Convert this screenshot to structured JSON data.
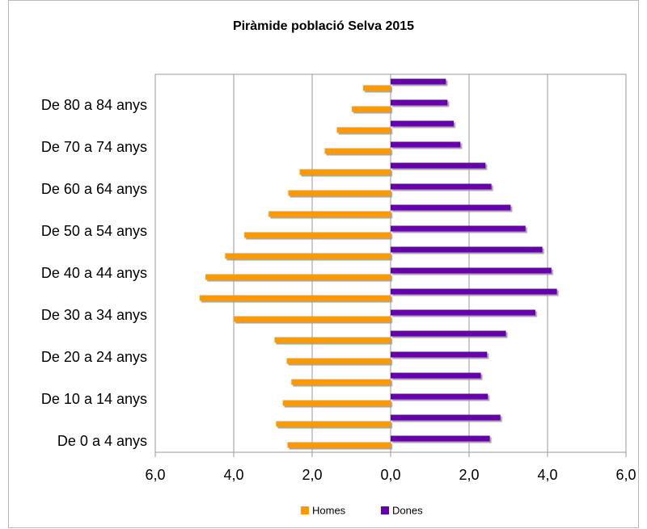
{
  "chart_data": {
    "type": "pyramid",
    "title": "Piràmide població Selva 2015",
    "categories": [
      "De 0 a 4 anys",
      null,
      "De 10 a 14 anys",
      null,
      "De 20 a 24 anys",
      null,
      "De 30 a 34 anys",
      null,
      "De 40 a 44 anys",
      null,
      "De 50 a 54 anys",
      null,
      "De 60 a 64 anys",
      null,
      "De 70 a 74 anys",
      null,
      "De 80 a 84 anys",
      null
    ],
    "series": [
      {
        "name": "Homes",
        "color": "#ff9900",
        "values": [
          -2.63,
          -2.92,
          -2.75,
          -2.53,
          -2.65,
          -2.96,
          -4.0,
          -4.87,
          -4.72,
          -4.22,
          -3.73,
          -3.11,
          -2.61,
          -2.32,
          -1.68,
          -1.37,
          -0.99,
          -0.7
        ]
      },
      {
        "name": "Dones",
        "color": "#6600aa",
        "values": [
          2.53,
          2.8,
          2.48,
          2.3,
          2.46,
          2.94,
          3.69,
          4.24,
          4.1,
          3.87,
          3.44,
          3.06,
          2.57,
          2.42,
          1.78,
          1.61,
          1.45,
          1.41
        ]
      }
    ],
    "xlim": [
      -6,
      6
    ],
    "xticks": [
      {
        "value": -6,
        "label": "6,0"
      },
      {
        "value": -4,
        "label": "4,0"
      },
      {
        "value": -2,
        "label": "2,0"
      },
      {
        "value": 0,
        "label": "0,0"
      },
      {
        "value": 2,
        "label": "2,0"
      },
      {
        "value": 4,
        "label": "4,0"
      },
      {
        "value": 6,
        "label": "6,0"
      }
    ],
    "grid": true,
    "legend": "bottom"
  }
}
